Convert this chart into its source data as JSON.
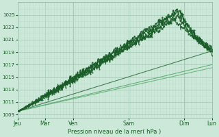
{
  "title": "Pression niveau de la mer( hPa )",
  "bg_color": "#cce8d8",
  "plot_bg_color": "#cce8d8",
  "grid_major_color": "#aaccbb",
  "grid_minor_color": "#bbddcc",
  "dark_green": "#1a5c28",
  "light_green": "#5aaa70",
  "ylim": [
    1008.5,
    1027.0
  ],
  "yticks": [
    1009,
    1011,
    1013,
    1015,
    1017,
    1019,
    1021,
    1023,
    1025
  ],
  "days": [
    "Jeu",
    "Mar",
    "Ven",
    "Sam",
    "Dim",
    "Lun"
  ],
  "day_positions": [
    0,
    0.142,
    0.285,
    0.571,
    0.857,
    1.0
  ],
  "total_hours": 192,
  "figwidth": 3.2,
  "figheight": 2.0,
  "dpi": 100
}
